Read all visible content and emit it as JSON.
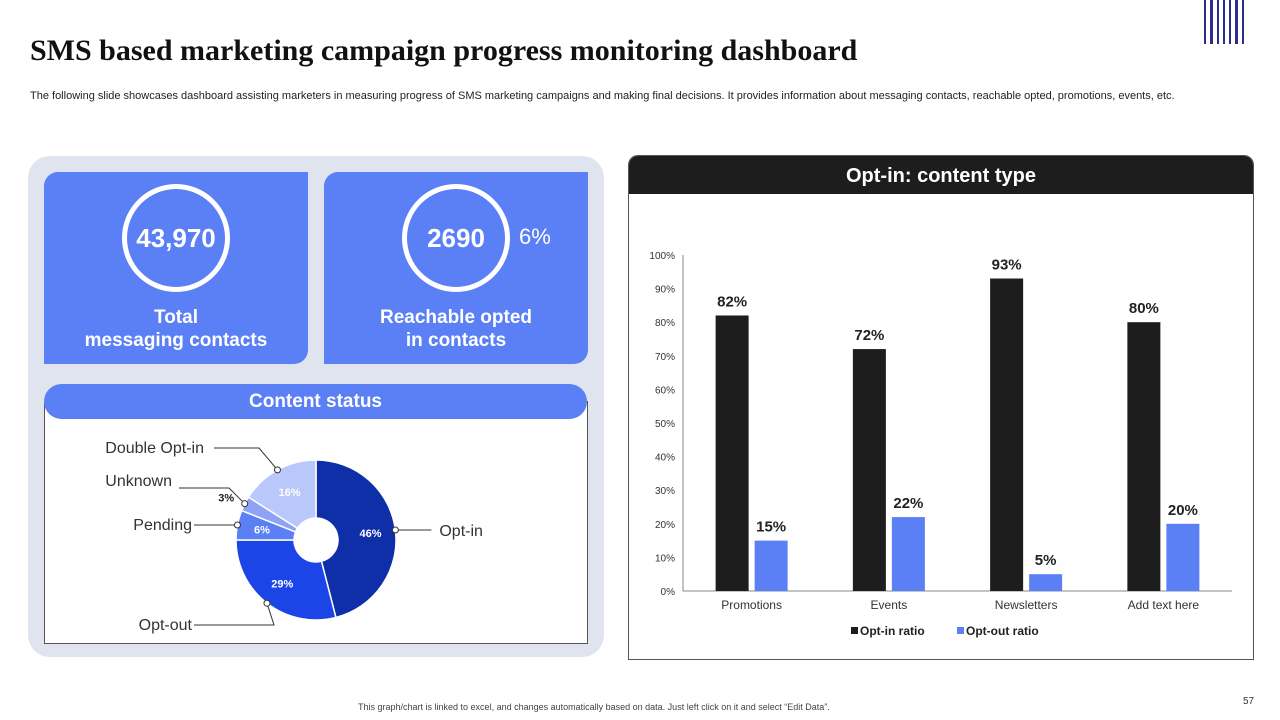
{
  "slide": {
    "title": "SMS based marketing campaign progress monitoring dashboard",
    "subtitle": "The following slide showcases dashboard assisting marketers in measuring progress of SMS marketing campaigns and making final decisions. It provides information about messaging contacts, reachable opted, promotions, events, etc.",
    "footer_note": "This graph/chart is linked to excel, and changes automatically based on data. Just left click on it and select “Edit Data”.",
    "page_number": "57"
  },
  "kpis": {
    "total": {
      "value": "43,970",
      "label_line1": "Total",
      "label_line2": "messaging contacts"
    },
    "reachable": {
      "value": "2690",
      "percent": "6%",
      "label_line1": "Reachable opted",
      "label_line2": "in contacts"
    }
  },
  "content_status": {
    "title": "Content status"
  },
  "opt_in": {
    "title": "Opt-in: content type"
  },
  "colors": {
    "accent_blue": "#5b7ff5",
    "dark": "#1d1d1d",
    "panel_bg": "#e0e4ef",
    "deep_blue": "#0e2fa8",
    "mid_blue": "#1c45e8",
    "light_blue": "#b9c8fa"
  },
  "chart_data": [
    {
      "type": "pie",
      "title": "Content status",
      "slices": [
        {
          "label": "Opt-in",
          "value": 46,
          "data_label": "46%",
          "color": "#0e2fa8"
        },
        {
          "label": "Opt-out",
          "value": 29,
          "data_label": "29%",
          "color": "#1c45e8"
        },
        {
          "label": "Pending",
          "value": 6,
          "data_label": "6%",
          "color": "#5b7ff5"
        },
        {
          "label": "Unknown",
          "value": 3,
          "data_label": "3%",
          "color": "#8ea3f5"
        },
        {
          "label": "Double Opt-in",
          "value": 16,
          "data_label": "16%",
          "color": "#b9c8fa"
        }
      ]
    },
    {
      "type": "bar",
      "title": "Opt-in: content type",
      "categories": [
        "Promotions",
        "Events",
        "Newsletters",
        "Add text here"
      ],
      "series": [
        {
          "name": "Opt-in ratio",
          "values": [
            82,
            72,
            93,
            80
          ],
          "labels": [
            "82%",
            "72%",
            "93%",
            "80%"
          ],
          "color": "#1d1d1d"
        },
        {
          "name": "Opt-out ratio",
          "values": [
            15,
            22,
            5,
            20
          ],
          "labels": [
            "15%",
            "22%",
            "5%",
            "20%"
          ],
          "color": "#5b7ff5"
        }
      ],
      "ylim": [
        0,
        100
      ],
      "yticks": [
        "0%",
        "10%",
        "20%",
        "30%",
        "40%",
        "50%",
        "60%",
        "70%",
        "80%",
        "90%",
        "100%"
      ],
      "legend_position": "bottom"
    }
  ]
}
